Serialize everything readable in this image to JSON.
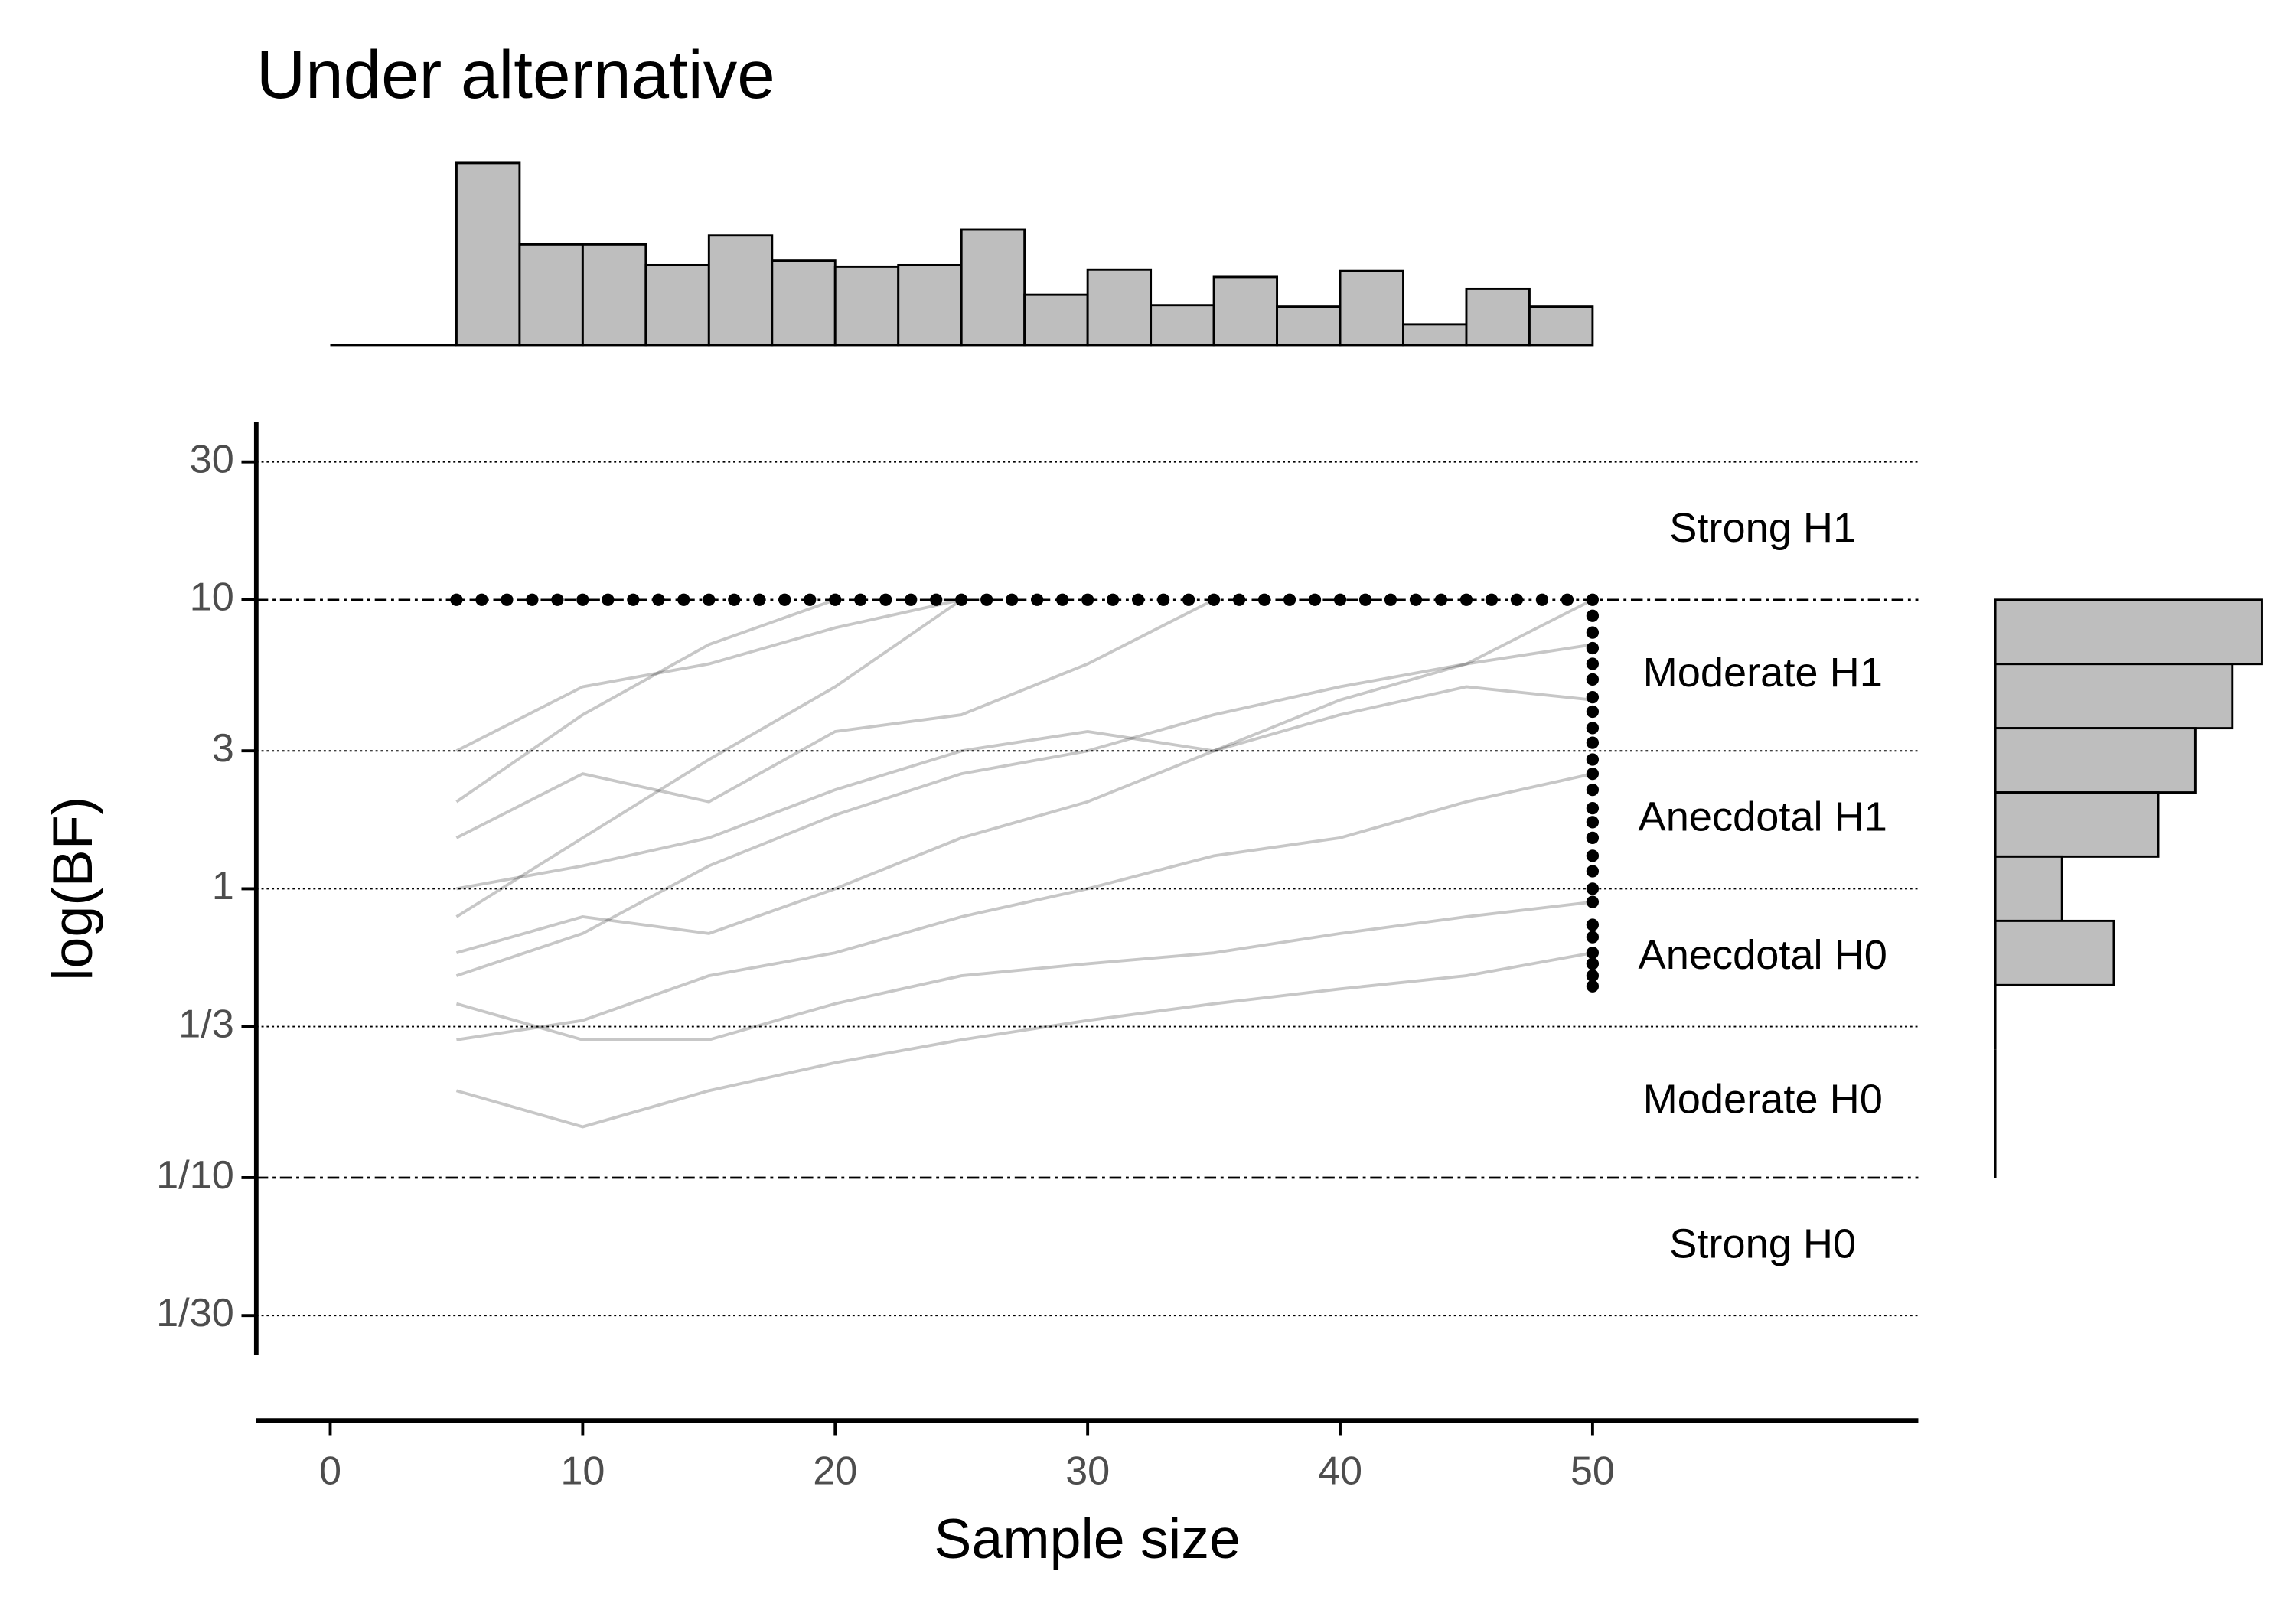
{
  "chart_data": [
    {
      "type": "line",
      "title": "Under alternative",
      "xlabel": "Sample size",
      "ylabel": "log(BF)",
      "xlim": [
        -2.93,
        62.9
      ],
      "ylim": [
        0.0243,
        41.2
      ],
      "log_y": true,
      "xticks": [
        0,
        10,
        20,
        30,
        40,
        50
      ],
      "yticks": [
        30,
        10,
        3,
        1,
        {
          "value": 0.3333,
          "label": "1/3"
        },
        {
          "value": 0.1,
          "label": "1/10"
        },
        {
          "value": 0.03333,
          "label": "1/30"
        }
      ],
      "thresholds": [
        10,
        0.1
      ],
      "zones": [
        "Strong H1",
        "Moderate H1",
        "Anecdotal H1",
        "Anecdotal H0",
        "Moderate H0",
        "Strong H0"
      ],
      "x": [
        5,
        10,
        15,
        20,
        25,
        30,
        35,
        40,
        45,
        50
      ],
      "series": [
        {
          "color": "#000000",
          "values": [
            0.8,
            1.5,
            2.8,
            5,
            10,
            null,
            null,
            null,
            null,
            null
          ]
        },
        {
          "color": "#000000",
          "values": [
            1.5,
            2.5,
            2,
            3.5,
            4,
            6,
            10,
            null,
            null,
            null
          ]
        },
        {
          "color": "#000000",
          "values": [
            0.5,
            0.7,
            1.2,
            1.8,
            2.5,
            3,
            4,
            5,
            6,
            7
          ]
        },
        {
          "color": "#000000",
          "values": [
            0.3,
            0.35,
            0.5,
            0.6,
            0.8,
            1,
            1.3,
            1.5,
            2,
            2.5
          ]
        },
        {
          "color": "#000000",
          "values": [
            0.2,
            0.15,
            0.2,
            0.25,
            0.3,
            0.35,
            0.4,
            0.45,
            0.5,
            0.6
          ]
        },
        {
          "color": "#000000",
          "values": [
            2,
            4,
            7,
            10,
            null,
            null,
            null,
            null,
            null,
            null
          ]
        },
        {
          "color": "#000000",
          "values": [
            1,
            1.2,
            1.5,
            2.2,
            3,
            3.5,
            3,
            4,
            5,
            4.5
          ]
        },
        {
          "color": "#000000",
          "values": [
            0.6,
            0.8,
            0.7,
            1,
            1.5,
            2,
            3,
            4.5,
            6,
            10
          ]
        },
        {
          "color": "#000000",
          "values": [
            0.4,
            0.3,
            0.3,
            0.4,
            0.5,
            0.55,
            0.6,
            0.7,
            0.8,
            0.9
          ]
        },
        {
          "color": "#000000",
          "values": [
            3,
            5,
            6,
            8,
            10,
            null,
            null,
            null,
            null,
            null
          ]
        }
      ],
      "points": {
        "color": "#000000",
        "x": [
          5,
          6,
          7,
          8,
          9,
          10,
          11,
          12,
          13,
          14,
          15,
          16,
          17,
          18,
          19,
          20,
          21,
          22,
          23,
          24,
          25,
          26,
          27,
          28,
          29,
          30,
          31,
          32,
          33,
          34,
          35,
          36,
          37,
          38,
          39,
          40,
          41,
          42,
          43,
          44,
          45,
          46,
          47,
          48,
          49,
          50,
          50,
          50,
          50,
          50,
          50,
          50,
          50,
          50,
          50,
          50,
          50,
          50,
          50,
          50,
          50,
          50,
          50,
          50,
          50,
          50,
          50,
          50,
          50,
          50,
          50
        ],
        "y": [
          10,
          10,
          10,
          10,
          10,
          10,
          10,
          10,
          10,
          10,
          10,
          10,
          10,
          10,
          10,
          10,
          10,
          10,
          10,
          10,
          10,
          10,
          10,
          10,
          10,
          10,
          10,
          10,
          10,
          10,
          10,
          10,
          10,
          10,
          10,
          10,
          10,
          10,
          10,
          10,
          10,
          10,
          10,
          10,
          10,
          10,
          8.8,
          7.7,
          6.8,
          6,
          5.3,
          4.6,
          4.1,
          3.6,
          3.2,
          2.8,
          2.5,
          2.2,
          1.9,
          1.7,
          1.5,
          1.3,
          1.15,
          1,
          0.9,
          0.75,
          0.68,
          0.6,
          0.55,
          0.5,
          0.46
        ]
      }
    },
    {
      "type": "histogram",
      "color": "#bebebe",
      "bins": [
        0,
        2.5,
        5,
        7.5,
        10,
        12.5,
        15,
        17.5,
        20,
        22.5,
        25,
        27.5,
        30,
        32.5,
        35,
        37.5,
        40,
        42.5,
        45,
        47.5,
        50
      ],
      "counts": [
        0,
        0,
        123,
        68,
        68,
        54,
        74,
        57,
        53,
        54,
        78,
        34,
        51,
        27,
        46,
        26,
        50,
        14,
        38,
        26
      ],
      "ylim": [
        0,
        130
      ]
    },
    {
      "type": "histogram",
      "orientation": "horizontal",
      "color": "#bebebe",
      "bins": [
        10,
        5.995,
        3.594,
        2.154,
        1.292,
        0.774,
        0.464,
        0.278,
        0.167,
        0.1
      ],
      "counts": [
        180,
        160,
        135,
        110,
        45,
        80,
        0,
        0,
        0
      ],
      "xlim": [
        0,
        190
      ]
    }
  ]
}
